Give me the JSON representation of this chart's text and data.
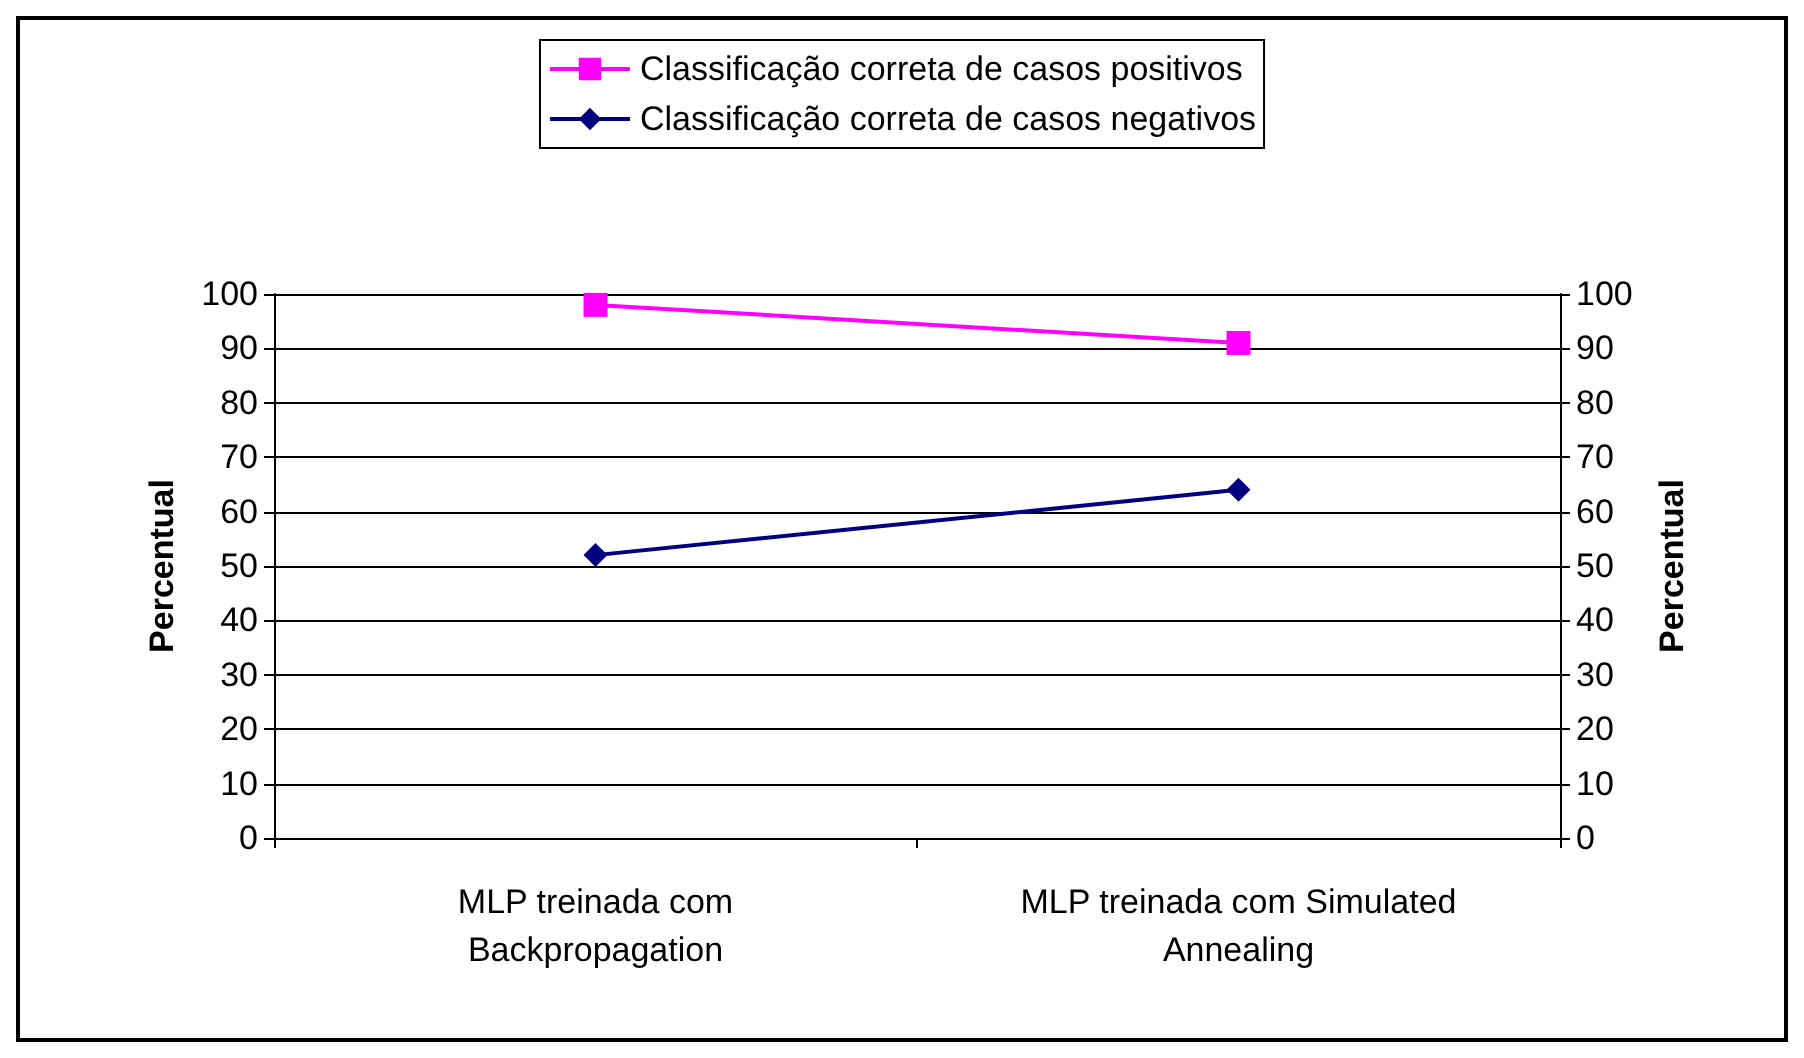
{
  "chart_data": {
    "type": "line",
    "ylabel": "Percentual",
    "y2label": "Percentual",
    "categories": [
      "MLP treinada com\nBackpropagation",
      "MLP treinada com Simulated\nAnnealing"
    ],
    "series": [
      {
        "name": "Classificação correta de casos positivos",
        "color": "#ff00ff",
        "marker": "square",
        "values": [
          98,
          91
        ]
      },
      {
        "name": "Classificação correta de casos negativos",
        "color": "#000080",
        "marker": "diamond",
        "values": [
          52,
          64
        ]
      }
    ],
    "ylim": [
      0,
      100
    ],
    "yticks": [
      0,
      10,
      20,
      30,
      40,
      50,
      60,
      70,
      80,
      90,
      100
    ],
    "y2lim": [
      0,
      100
    ],
    "y2ticks": [
      0,
      10,
      20,
      30,
      40,
      50,
      60,
      70,
      80,
      90,
      100
    ],
    "grid": "y",
    "legend": "top",
    "line_style": "solid"
  }
}
